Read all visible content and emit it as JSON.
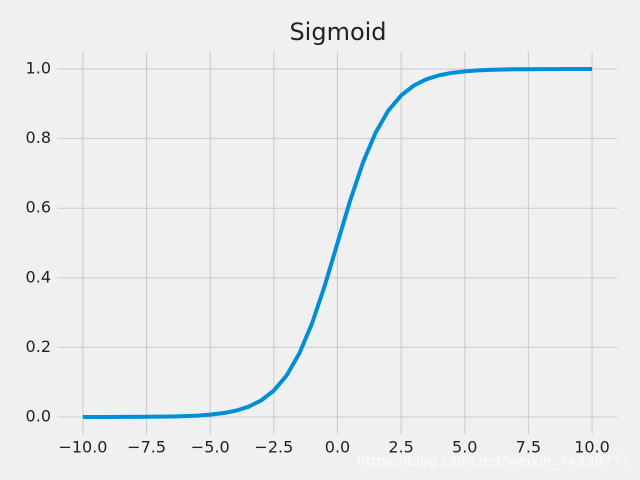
{
  "chart_data": {
    "type": "line",
    "title": "Sigmoid",
    "x": [
      -10,
      -9.5,
      -9,
      -8.5,
      -8,
      -7.5,
      -7,
      -6.5,
      -6,
      -5.5,
      -5,
      -4.5,
      -4,
      -3.5,
      -3,
      -2.5,
      -2,
      -1.5,
      -1,
      -0.5,
      0,
      0.5,
      1,
      1.5,
      2,
      2.5,
      3,
      3.5,
      4,
      4.5,
      5,
      5.5,
      6,
      6.5,
      7,
      7.5,
      8,
      8.5,
      9,
      9.5,
      10
    ],
    "series": [
      {
        "name": "sigmoid",
        "color": "#008fd5",
        "values": [
          5e-05,
          7e-05,
          0.00012,
          0.0002,
          0.00034,
          0.00055,
          0.00091,
          0.0015,
          0.0025,
          0.0041,
          0.0067,
          0.011,
          0.018,
          0.0293,
          0.0474,
          0.0759,
          0.1192,
          0.1824,
          0.2689,
          0.3775,
          0.5,
          0.6225,
          0.7311,
          0.8176,
          0.8808,
          0.9241,
          0.9526,
          0.9707,
          0.982,
          0.989,
          0.9933,
          0.9959,
          0.9975,
          0.9985,
          0.9991,
          0.99945,
          0.99966,
          0.9998,
          0.99988,
          0.99993,
          0.99995
        ]
      }
    ],
    "xlim": [
      -11,
      11
    ],
    "ylim": [
      -0.05,
      1.05
    ],
    "xticks": [
      {
        "value": -10,
        "label": "−10.0"
      },
      {
        "value": -7.5,
        "label": "−7.5"
      },
      {
        "value": -5,
        "label": "−5.0"
      },
      {
        "value": -2.5,
        "label": "−2.5"
      },
      {
        "value": 0,
        "label": "0.0"
      },
      2.5,
      {
        "value": 5,
        "label": "5.0"
      },
      7.5,
      {
        "value": 10,
        "label": "10.0"
      }
    ],
    "yticks": [
      {
        "value": 0,
        "label": "0.0"
      },
      0.2,
      0.4,
      0.6,
      0.8,
      {
        "value": 1,
        "label": "1.0"
      }
    ],
    "grid": true,
    "watermark": "https://blog.csdn.net/weixin_44330777"
  }
}
